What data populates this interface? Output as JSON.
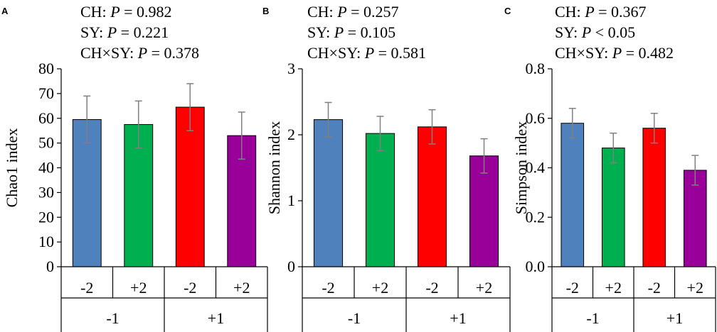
{
  "colors": {
    "blue": "#4F81BD",
    "green": "#00B050",
    "red": "#FF0000",
    "purple": "#990099",
    "error": "#808080",
    "axis": "#000000"
  },
  "chart_data": [
    {
      "type": "bar",
      "panel": "A",
      "stats": [
        {
          "pre": "CH: ",
          "p": "P",
          "post": " = 0.982"
        },
        {
          "pre": "SY: ",
          "p": "P",
          "post": " = 0.221"
        },
        {
          "pre": "CH×SY: ",
          "p": "P",
          "post": " = 0.378"
        }
      ],
      "ylabel": "Chao1 index",
      "ylim": [
        0,
        80
      ],
      "yticks": [
        0,
        10,
        20,
        30,
        40,
        50,
        60,
        70,
        80
      ],
      "ytick_labels": [
        "0",
        "10",
        "20",
        "30",
        "40",
        "50",
        "60",
        "70",
        "80"
      ],
      "categories": [
        "-2",
        "+2",
        "-2",
        "+2"
      ],
      "groups": [
        "-1",
        "+1"
      ],
      "values": [
        59.5,
        57.5,
        64.5,
        53
      ],
      "errors": [
        9.5,
        9.5,
        9.5,
        9.5
      ],
      "bar_colors": [
        "#4F81BD",
        "#00B050",
        "#FF0000",
        "#990099"
      ]
    },
    {
      "type": "bar",
      "panel": "B",
      "stats": [
        {
          "pre": "CH: ",
          "p": "P",
          "post": " = 0.257"
        },
        {
          "pre": "SY: ",
          "p": "P",
          "post": " = 0.105"
        },
        {
          "pre": "CH×SY: ",
          "p": "P",
          "post": " = 0.581"
        }
      ],
      "ylabel": "Shannon index",
      "ylim": [
        0,
        3
      ],
      "yticks": [
        0,
        1,
        2,
        3
      ],
      "ytick_labels": [
        "0",
        "1",
        "2",
        "3"
      ],
      "categories": [
        "-2",
        "+2",
        "-2",
        "+2"
      ],
      "groups": [
        "-1",
        "+1"
      ],
      "values": [
        2.23,
        2.02,
        2.12,
        1.68
      ],
      "errors": [
        0.26,
        0.26,
        0.26,
        0.26
      ],
      "bar_colors": [
        "#4F81BD",
        "#00B050",
        "#FF0000",
        "#990099"
      ]
    },
    {
      "type": "bar",
      "panel": "C",
      "stats": [
        {
          "pre": "CH: ",
          "p": "P",
          "post": " = 0.367"
        },
        {
          "pre": "SY: ",
          "p": "P",
          "post": " < 0.05"
        },
        {
          "pre": "CH×SY: ",
          "p": "P",
          "post": " = 0.482"
        }
      ],
      "ylabel": "Simpson index",
      "ylim": [
        0,
        0.8
      ],
      "yticks": [
        0,
        0.2,
        0.4,
        0.6,
        0.8
      ],
      "ytick_labels": [
        "0.0",
        "0.2",
        "0.4",
        "0.6",
        "0.8"
      ],
      "categories": [
        "-2",
        "+2",
        "-2",
        "+2"
      ],
      "groups": [
        "-1",
        "+1"
      ],
      "values": [
        0.58,
        0.48,
        0.56,
        0.39
      ],
      "errors": [
        0.06,
        0.06,
        0.06,
        0.06
      ],
      "bar_colors": [
        "#4F81BD",
        "#00B050",
        "#FF0000",
        "#990099"
      ]
    }
  ]
}
